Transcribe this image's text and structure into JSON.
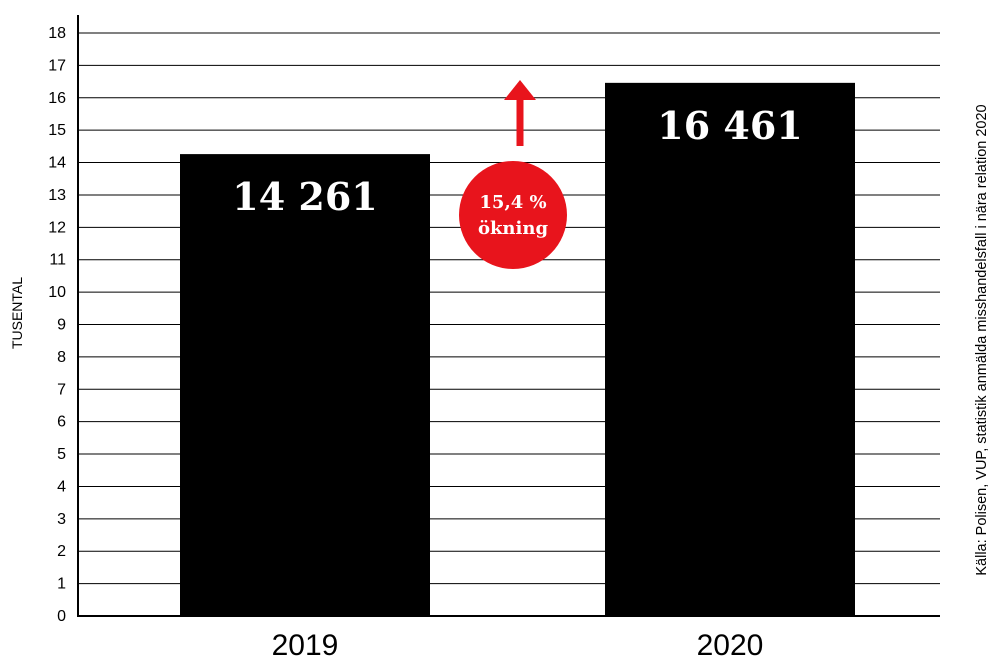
{
  "chart_data": {
    "type": "bar",
    "categories": [
      "2019",
      "2020"
    ],
    "values": [
      14.261,
      16.461
    ],
    "data_labels": [
      "14 261",
      "16 461"
    ],
    "ylabel": "TUSENTAL",
    "ylim": [
      0,
      18
    ],
    "yticks": [
      "0",
      "1",
      "2",
      "3",
      "4",
      "5",
      "6",
      "7",
      "8",
      "9",
      "10",
      "11",
      "12",
      "13",
      "14",
      "15",
      "16",
      "17",
      "18"
    ],
    "grid": true,
    "source": "Källa: Polisen, VUP, statistik anmälda misshandelsfall i nära relation 2020",
    "annotation": {
      "line1": "15,4 %",
      "line2": "ökning"
    }
  },
  "colors": {
    "bar": "#000000",
    "badge": "#e8141c",
    "arrow": "#e8141c",
    "grid": "#000000"
  }
}
